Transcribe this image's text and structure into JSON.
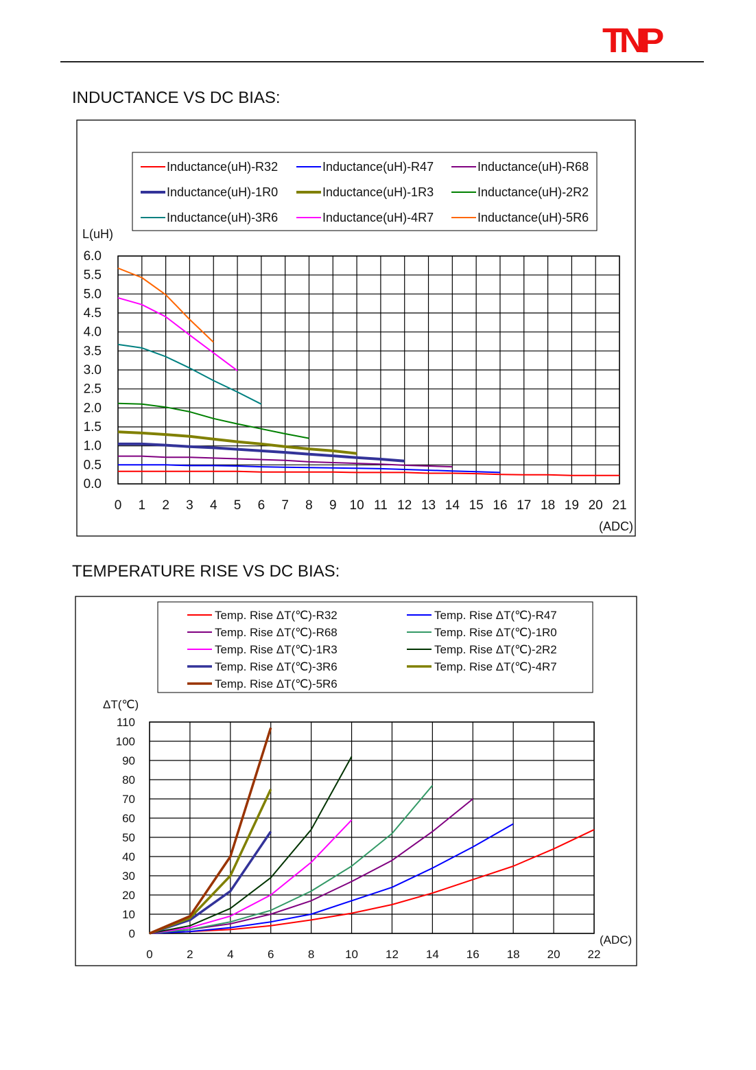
{
  "header": {
    "logo_text": "TNP",
    "logo_color": "#ee1111"
  },
  "sections": {
    "inductance_title": "INDUCTANCE VS DC BIAS:",
    "temperature_title": "TEMPERATURE RISE VS DC BIAS:"
  },
  "chart_data": [
    {
      "type": "line",
      "title": "INDUCTANCE VS DC BIAS:",
      "ylabel": "L(uH)",
      "xlabel": "(ADC)",
      "xlim": [
        0,
        21
      ],
      "ylim": [
        0,
        6
      ],
      "xticks": [
        "0",
        "1",
        "2",
        "3",
        "4",
        "5",
        "6",
        "7",
        "8",
        "9",
        "10",
        "11",
        "12",
        "13",
        "14",
        "15",
        "16",
        "17",
        "18",
        "19",
        "20",
        "21"
      ],
      "yticks": [
        "0.0",
        "0.5",
        "1.0",
        "1.5",
        "2.0",
        "2.5",
        "3.0",
        "3.5",
        "4.0",
        "4.5",
        "5.0",
        "5.5",
        "6.0"
      ],
      "grid": true,
      "legend_position": "top",
      "series": [
        {
          "name": "Inductance(uH)-R32",
          "color": "#ff0000",
          "width": 2,
          "x": [
            0,
            1,
            2,
            3,
            4,
            5,
            6,
            7,
            8,
            9,
            10,
            11,
            12,
            13,
            14,
            15,
            16,
            17,
            18,
            19,
            20,
            21
          ],
          "y": [
            0.33,
            0.33,
            0.33,
            0.33,
            0.33,
            0.33,
            0.31,
            0.31,
            0.31,
            0.31,
            0.3,
            0.3,
            0.3,
            0.28,
            0.28,
            0.27,
            0.25,
            0.24,
            0.24,
            0.22,
            0.22,
            0.22
          ]
        },
        {
          "name": "Inductance(uH)-R47",
          "color": "#0000ff",
          "width": 2,
          "x": [
            0,
            1,
            2,
            3,
            4,
            5,
            6,
            7,
            8,
            9,
            10,
            11,
            12,
            13,
            14,
            15,
            16
          ],
          "y": [
            0.5,
            0.5,
            0.5,
            0.48,
            0.48,
            0.47,
            0.45,
            0.44,
            0.43,
            0.42,
            0.41,
            0.4,
            0.38,
            0.36,
            0.34,
            0.32,
            0.3
          ]
        },
        {
          "name": "Inductance(uH)-R68",
          "color": "#800080",
          "width": 2,
          "x": [
            0,
            1,
            2,
            3,
            4,
            5,
            6,
            7,
            8,
            9,
            10,
            11,
            12,
            13,
            14
          ],
          "y": [
            0.73,
            0.73,
            0.7,
            0.7,
            0.68,
            0.66,
            0.64,
            0.62,
            0.58,
            0.56,
            0.54,
            0.52,
            0.49,
            0.47,
            0.45
          ]
        },
        {
          "name": "Inductance(uH)-1R0",
          "color": "#333399",
          "width": 4,
          "x": [
            0,
            1,
            2,
            3,
            4,
            5,
            6,
            7,
            8,
            9,
            10,
            11,
            12
          ],
          "y": [
            1.05,
            1.05,
            1.02,
            0.98,
            0.95,
            0.91,
            0.87,
            0.83,
            0.78,
            0.74,
            0.69,
            0.65,
            0.6
          ]
        },
        {
          "name": "Inductance(uH)-1R3",
          "color": "#808000",
          "width": 4,
          "x": [
            0,
            1,
            2,
            3,
            4,
            5,
            6,
            7,
            8,
            9,
            10
          ],
          "y": [
            1.37,
            1.34,
            1.3,
            1.25,
            1.18,
            1.11,
            1.05,
            0.98,
            0.92,
            0.87,
            0.8
          ]
        },
        {
          "name": "Inductance(uH)-2R2",
          "color": "#008000",
          "width": 2,
          "x": [
            0,
            1,
            2,
            3,
            4,
            5,
            6,
            7,
            8
          ],
          "y": [
            2.12,
            2.1,
            2.02,
            1.9,
            1.72,
            1.58,
            1.45,
            1.32,
            1.2
          ]
        },
        {
          "name": "Inductance(uH)-3R6",
          "color": "#008080",
          "width": 2,
          "x": [
            0,
            1,
            2,
            3,
            4,
            5,
            6
          ],
          "y": [
            3.67,
            3.58,
            3.35,
            3.05,
            2.72,
            2.42,
            2.1
          ]
        },
        {
          "name": "Inductance(uH)-4R7",
          "color": "#ff00ff",
          "width": 2,
          "x": [
            0,
            1,
            2,
            3,
            4,
            5
          ],
          "y": [
            4.9,
            4.72,
            4.4,
            3.92,
            3.45,
            2.98
          ]
        },
        {
          "name": "Inductance(uH)-5R6",
          "color": "#ff6600",
          "width": 2,
          "x": [
            0,
            1,
            2,
            3,
            4
          ],
          "y": [
            5.68,
            5.43,
            4.98,
            4.33,
            3.73
          ]
        }
      ]
    },
    {
      "type": "line",
      "title": "TEMPERATURE RISE VS DC BIAS:",
      "ylabel": "ΔT(℃)",
      "xlabel": "(ADC)",
      "xlim": [
        0,
        22
      ],
      "ylim": [
        0,
        110
      ],
      "xticks": [
        "0",
        "2",
        "4",
        "6",
        "8",
        "10",
        "12",
        "14",
        "16",
        "18",
        "20",
        "22"
      ],
      "yticks": [
        "0",
        "10",
        "20",
        "30",
        "40",
        "50",
        "60",
        "70",
        "80",
        "90",
        "100",
        "110"
      ],
      "grid": true,
      "legend_position": "top",
      "series": [
        {
          "name": "Temp. Rise ΔT(℃)-R32",
          "color": "#ff0000",
          "width": 2,
          "x": [
            0,
            2,
            4,
            6,
            8,
            10,
            12,
            14,
            16,
            18,
            20,
            22
          ],
          "y": [
            0,
            1,
            2,
            4,
            7,
            10.5,
            15,
            21,
            28,
            35,
            44,
            54
          ]
        },
        {
          "name": "Temp. Rise ΔT(℃)-R47",
          "color": "#0000ff",
          "width": 2,
          "x": [
            0,
            2,
            4,
            6,
            8,
            10,
            12,
            14,
            16,
            18
          ],
          "y": [
            0,
            1,
            3,
            6,
            10,
            17,
            24,
            34,
            45,
            57
          ]
        },
        {
          "name": "Temp. Rise ΔT(℃)-R68",
          "color": "#800080",
          "width": 2,
          "x": [
            0,
            2,
            4,
            6,
            8,
            10,
            12,
            14,
            16
          ],
          "y": [
            0,
            2,
            5,
            10,
            17,
            27,
            38,
            53,
            70
          ]
        },
        {
          "name": "Temp. Rise ΔT(℃)-1R0",
          "color": "#339966",
          "width": 2,
          "x": [
            0,
            2,
            4,
            6,
            8,
            10,
            12,
            14
          ],
          "y": [
            0,
            2,
            6,
            12,
            22,
            35,
            52,
            77
          ]
        },
        {
          "name": "Temp. Rise ΔT(℃)-1R3",
          "color": "#ff00ff",
          "width": 2,
          "x": [
            0,
            2,
            4,
            6,
            8,
            10
          ],
          "y": [
            0,
            3,
            9,
            20,
            37,
            59
          ]
        },
        {
          "name": "Temp. Rise ΔT(℃)-2R2",
          "color": "#003300",
          "width": 2,
          "x": [
            0,
            2,
            4,
            6,
            8,
            10
          ],
          "y": [
            0,
            4,
            13,
            29,
            54,
            92
          ]
        },
        {
          "name": "Temp. Rise ΔT(℃)-3R6",
          "color": "#333399",
          "width": 3.5,
          "x": [
            0,
            2,
            4,
            6
          ],
          "y": [
            0,
            7,
            22,
            53
          ]
        },
        {
          "name": "Temp. Rise ΔT(℃)-4R7",
          "color": "#808000",
          "width": 3.5,
          "x": [
            0,
            2,
            4,
            6
          ],
          "y": [
            0,
            8,
            30,
            75
          ]
        },
        {
          "name": "Temp. Rise ΔT(℃)-5R6",
          "color": "#993300",
          "width": 3.5,
          "x": [
            0,
            2,
            4,
            6
          ],
          "y": [
            0,
            9,
            40,
            107
          ]
        }
      ]
    }
  ]
}
